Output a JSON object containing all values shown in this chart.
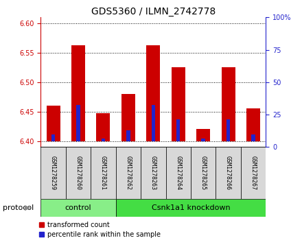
{
  "title": "GDS5360 / ILMN_2742778",
  "samples": [
    "GSM1278259",
    "GSM1278260",
    "GSM1278261",
    "GSM1278262",
    "GSM1278263",
    "GSM1278264",
    "GSM1278265",
    "GSM1278266",
    "GSM1278267"
  ],
  "transformed_count": [
    6.46,
    6.563,
    6.447,
    6.48,
    6.563,
    6.525,
    6.42,
    6.525,
    6.455
  ],
  "percentile_rank": [
    5,
    28,
    2,
    8,
    28,
    17,
    2,
    17,
    5
  ],
  "bar_base": 6.4,
  "ylim_left": [
    6.39,
    6.61
  ],
  "ylim_right": [
    0,
    100
  ],
  "yticks_left": [
    6.4,
    6.45,
    6.5,
    6.55,
    6.6
  ],
  "yticks_right": [
    0,
    25,
    50,
    75,
    100
  ],
  "bar_color_red": "#cc0000",
  "bar_color_blue": "#2222cc",
  "protocol_groups": [
    {
      "label": "control",
      "start": 0,
      "end": 3,
      "color": "#88ee88"
    },
    {
      "label": "Csnk1a1 knockdown",
      "start": 3,
      "end": 9,
      "color": "#44dd44"
    }
  ],
  "protocol_label": "protocol",
  "legend_items": [
    {
      "label": "transformed count",
      "color": "#cc0000"
    },
    {
      "label": "percentile rank within the sample",
      "color": "#2222cc"
    }
  ],
  "bar_width": 0.55,
  "blue_bar_width": 0.15,
  "tick_color_left": "#cc0000",
  "tick_color_right": "#2222cc",
  "title_fontsize": 10,
  "tick_fontsize": 7,
  "sample_fontsize": 6,
  "protocol_fontsize": 8,
  "legend_fontsize": 7,
  "bg_color": "#ffffff",
  "sample_bg": "#d8d8d8"
}
